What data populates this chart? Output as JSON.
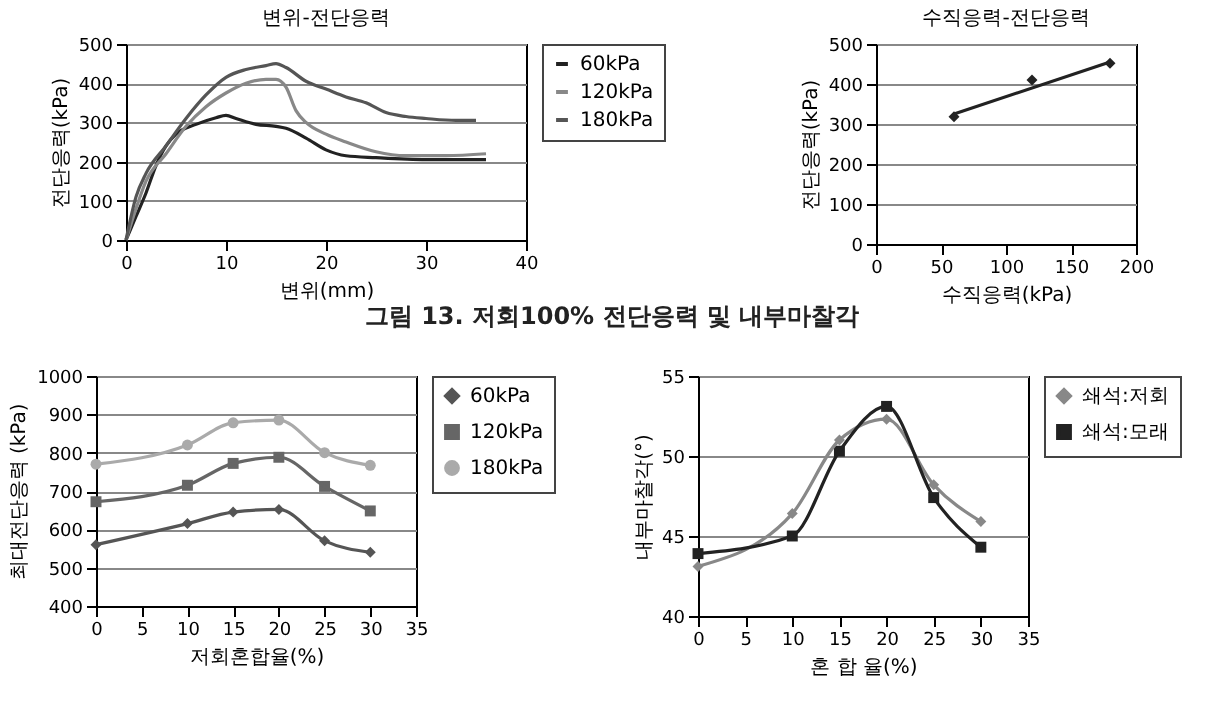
{
  "chart_data": [
    {
      "type": "line",
      "title": "변위-전단응력",
      "xlabel": "변위(mm)",
      "ylabel": "전단응력(kPa)",
      "xlim": [
        0,
        40
      ],
      "xticks": [
        0,
        10,
        20,
        30,
        40
      ],
      "ylim": [
        0,
        500
      ],
      "yticks": [
        0,
        100,
        200,
        300,
        400,
        500
      ],
      "grid": "y",
      "legend": "right",
      "marker": "none",
      "annotations": [
        "그림 13. 저회100% 전단응력 및 내부마찰각"
      ],
      "series": [
        {
          "name": "60kPa",
          "color": "#222222",
          "x": [
            0,
            1,
            2,
            3,
            4,
            5,
            7,
            9,
            10,
            11,
            13,
            15,
            16,
            18,
            20,
            22,
            25,
            30,
            36
          ],
          "values": [
            0,
            60,
            120,
            190,
            240,
            270,
            295,
            312,
            318,
            310,
            295,
            290,
            285,
            260,
            230,
            215,
            210,
            205,
            205
          ]
        },
        {
          "name": "120kPa",
          "color": "#888888",
          "x": [
            0,
            1,
            2,
            4,
            6,
            8,
            10,
            12,
            14,
            15,
            16,
            17,
            18,
            20,
            22,
            25,
            28,
            32,
            36
          ],
          "values": [
            0,
            80,
            150,
            220,
            290,
            340,
            375,
            400,
            410,
            410,
            390,
            330,
            300,
            270,
            250,
            225,
            215,
            215,
            220
          ]
        },
        {
          "name": "180kPa",
          "color": "#555555",
          "x": [
            0,
            1,
            2,
            4,
            6,
            8,
            10,
            12,
            14,
            15,
            16,
            18,
            20,
            22,
            24,
            26,
            28,
            30,
            33,
            35
          ],
          "values": [
            0,
            110,
            170,
            240,
            310,
            370,
            415,
            435,
            445,
            450,
            440,
            405,
            385,
            365,
            350,
            325,
            315,
            310,
            305,
            305
          ]
        }
      ]
    },
    {
      "type": "scatter",
      "title": "수직응력-전단응력",
      "xlabel": "수직응력(kPa)",
      "ylabel": "전단응력(kPa)",
      "xlim": [
        0,
        200
      ],
      "xticks": [
        0,
        50,
        100,
        150,
        200
      ],
      "ylim": [
        0,
        500
      ],
      "yticks": [
        0,
        100,
        200,
        300,
        400,
        500
      ],
      "grid": "y",
      "series": [
        {
          "type": "scatter",
          "color": "#222222",
          "marker": "diamond",
          "x": [
            60,
            120,
            180
          ],
          "values": [
            318,
            410,
            452
          ]
        },
        {
          "type": "line",
          "color": "#222222",
          "marker": "none",
          "x": [
            60,
            180
          ],
          "values": [
            325,
            455
          ]
        }
      ]
    },
    {
      "type": "line",
      "xlabel": "저회혼합율(%)",
      "ylabel": "최대전단응력 (kPa)",
      "xlim": [
        0,
        35
      ],
      "xticks": [
        0,
        5,
        10,
        15,
        20,
        25,
        30,
        35
      ],
      "ylim": [
        400,
        1000
      ],
      "yticks": [
        400,
        500,
        600,
        700,
        800,
        900,
        1000
      ],
      "grid": "y",
      "legend": "right",
      "x": [
        0,
        10,
        15,
        20,
        25,
        30
      ],
      "series": [
        {
          "name": "60kPa",
          "color": "#555555",
          "marker": "diamond",
          "values": [
            560,
            615,
            645,
            652,
            570,
            540
          ]
        },
        {
          "name": "120kPa",
          "color": "#666666",
          "marker": "square",
          "values": [
            672,
            715,
            772,
            788,
            712,
            648
          ]
        },
        {
          "name": "180kPa",
          "color": "#aaaaaa",
          "marker": "circle",
          "values": [
            770,
            820,
            878,
            885,
            800,
            767
          ]
        }
      ]
    },
    {
      "type": "line",
      "xlabel": "혼 합 율(%)",
      "ylabel": "내부마찰각(°)",
      "xlim": [
        0,
        35
      ],
      "xticks": [
        0,
        5,
        10,
        15,
        20,
        25,
        30,
        35
      ],
      "ylim": [
        40,
        55
      ],
      "yticks": [
        40,
        45,
        50,
        55
      ],
      "grid": "y",
      "legend": "right",
      "x": [
        0,
        10,
        15,
        20,
        25,
        30
      ],
      "series": [
        {
          "name": "쇄석:저회",
          "color": "#888888",
          "marker": "diamond",
          "values": [
            43.1,
            46.4,
            51.0,
            52.3,
            48.2,
            45.9
          ]
        },
        {
          "name": "쇄석:모래",
          "color": "#222222",
          "marker": "square",
          "values": [
            43.9,
            45.0,
            50.3,
            53.1,
            47.4,
            44.3
          ]
        }
      ]
    }
  ]
}
